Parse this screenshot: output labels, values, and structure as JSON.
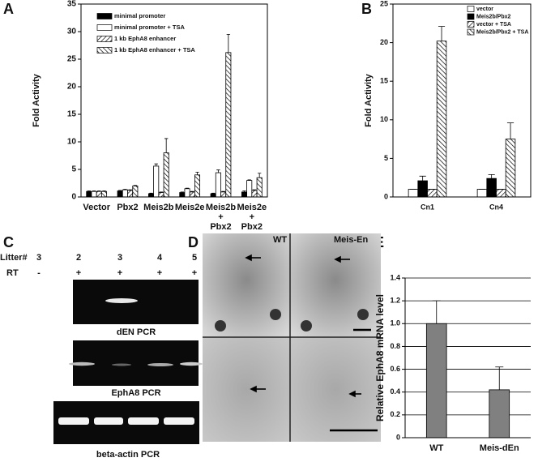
{
  "panel_letters": [
    "A",
    "B",
    "C",
    "D",
    "E"
  ],
  "chart_data": [
    {
      "type": "bar",
      "ylabel": "Fold Activity",
      "categories": [
        "Vector",
        "Pbx2",
        "Meis2b",
        "Meis2e",
        "Meis2b + Pbx2",
        "Meis2e + Pbx2"
      ],
      "series": [
        {
          "name": "minimal promoter",
          "color": "#000000",
          "values": [
            1,
            1.1,
            0.6,
            0.8,
            0.6,
            0.9
          ],
          "errors": [
            0.1,
            0.1,
            0.1,
            0.1,
            0.1,
            0.2
          ]
        },
        {
          "name": "minimal promoter + TSA",
          "color": "#ffffff",
          "values": [
            1,
            1.3,
            5.6,
            1.5,
            4.4,
            3.0
          ],
          "errors": [
            0.1,
            0.1,
            0.4,
            0.1,
            0.5,
            0.1
          ]
        },
        {
          "name": "1 kb EphA8 enhancer",
          "color": "#000000",
          "hatch": "/",
          "values": [
            1,
            1.2,
            0.8,
            0.9,
            0.9,
            1.2
          ],
          "errors": [
            0.1,
            0.1,
            0.1,
            0.1,
            0.1,
            0.1
          ]
        },
        {
          "name": "1 kb EphA8 enhancer + TSA",
          "color": "#000000",
          "hatch": "\\",
          "values": [
            1,
            2.0,
            8.0,
            4.0,
            26.2,
            3.5
          ],
          "errors": [
            0.1,
            0.1,
            2.6,
            0.5,
            3.3,
            0.8
          ]
        }
      ],
      "ylim": [
        0,
        35
      ],
      "yticks": [
        0,
        5,
        10,
        15,
        20,
        25,
        30,
        35
      ],
      "legend": "upper left"
    },
    {
      "type": "bar",
      "ylabel": "Fold Activity",
      "categories": [
        "Cn1",
        "Cn4"
      ],
      "series": [
        {
          "name": "vector",
          "color": "#ffffff",
          "values": [
            1,
            1
          ],
          "errors": [
            0,
            0
          ]
        },
        {
          "name": "Meis2b/Pbx2",
          "color": "#000000",
          "values": [
            2.1,
            2.4
          ],
          "errors": [
            0.6,
            0.5
          ]
        },
        {
          "name": "vector + TSA",
          "color": "#000000",
          "hatch": "/",
          "values": [
            1,
            1
          ],
          "errors": [
            0,
            0
          ]
        },
        {
          "name": "Meis2b/Pbx2 + TSA",
          "color": "#000000",
          "hatch": "\\",
          "values": [
            20.2,
            7.5
          ],
          "errors": [
            1.9,
            2.1
          ]
        }
      ],
      "ylim": [
        0,
        25
      ],
      "yticks": [
        0,
        5,
        10,
        15,
        20,
        25
      ],
      "legend": "upper right"
    },
    {
      "type": "bar",
      "ylabel": "Relative EphA8 mRNA level",
      "categories": [
        "WT",
        "Meis-dEn"
      ],
      "series": [
        {
          "color": "#808080",
          "values": [
            1.0,
            0.42
          ],
          "errors": [
            0.2,
            0.2
          ]
        }
      ],
      "ylim": [
        0,
        1.4
      ],
      "yticks": [
        0,
        0.2,
        0.4,
        0.6,
        0.8,
        {
          "value": 1,
          "label": "1.0"
        },
        1.2,
        1.4
      ],
      "grid": true
    }
  ],
  "gel": {
    "row_labels": [
      "Litter#",
      "RT"
    ],
    "litters": [
      "3",
      "2",
      "3",
      "4",
      "5"
    ],
    "rt": [
      "-",
      "+",
      "+",
      "+",
      "+"
    ],
    "gels": [
      "dEN PCR",
      "EphA8 PCR",
      "beta-actin PCR"
    ]
  },
  "embryos": {
    "labels": [
      "WT",
      "Meis-En"
    ]
  }
}
